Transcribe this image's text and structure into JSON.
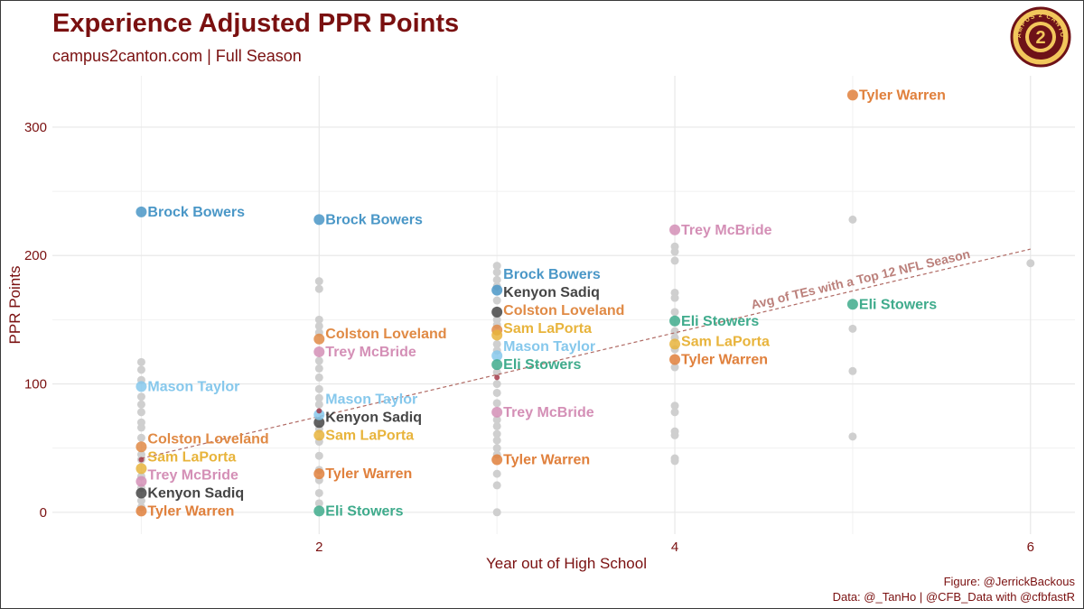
{
  "header": {
    "title": "Experience Adjusted PPR Points",
    "subtitle": "campus2canton.com | Full Season"
  },
  "caption": {
    "line1": "Figure: @JerrickBackous",
    "line2": "Data: @_TanHo | @CFB_Data with @cfbfastR"
  },
  "logo": {
    "text": "CAMPUS 2 CANTON",
    "mark": "2"
  },
  "colors": {
    "title": "#7a1010",
    "grid": "#e8e8e8",
    "background_points": "#cfcfcf",
    "trend": "#b06a64",
    "players": {
      "Brock Bowers": "#4a97c7",
      "Kenyon Sadiq": "#454545",
      "Colston Loveland": "#e08a45",
      "Sam LaPorta": "#e8b43c",
      "Mason Taylor": "#86c8ec",
      "Eli Stowers": "#3fab8c",
      "Trey McBride": "#d48fb6",
      "Tyler Warren": "#e0803c"
    }
  },
  "chart_data": {
    "type": "scatter",
    "title": "Experience Adjusted PPR Points",
    "subtitle": "campus2canton.com | Full Season",
    "xlabel": "Year out of High School",
    "ylabel": "PPR Points",
    "xlim": [
      0.5,
      6.25
    ],
    "ylim": [
      -17,
      340
    ],
    "xticks": [
      2,
      4,
      6
    ],
    "yticks": [
      0,
      100,
      200,
      300
    ],
    "grid": true,
    "highlighted_series": [
      {
        "name": "Brock Bowers",
        "points": [
          {
            "x": 1,
            "y": 234
          },
          {
            "x": 2,
            "y": 228
          },
          {
            "x": 3,
            "y": 173
          }
        ]
      },
      {
        "name": "Kenyon Sadiq",
        "points": [
          {
            "x": 1,
            "y": 15
          },
          {
            "x": 2,
            "y": 70
          },
          {
            "x": 3,
            "y": 156
          }
        ]
      },
      {
        "name": "Colston Loveland",
        "points": [
          {
            "x": 1,
            "y": 51
          },
          {
            "x": 2,
            "y": 135
          },
          {
            "x": 3,
            "y": 142
          }
        ]
      },
      {
        "name": "Sam LaPorta",
        "points": [
          {
            "x": 1,
            "y": 34
          },
          {
            "x": 2,
            "y": 60
          },
          {
            "x": 3,
            "y": 138
          },
          {
            "x": 4,
            "y": 131
          }
        ]
      },
      {
        "name": "Mason Taylor",
        "points": [
          {
            "x": 1,
            "y": 98
          },
          {
            "x": 2,
            "y": 76
          },
          {
            "x": 3,
            "y": 122
          }
        ]
      },
      {
        "name": "Eli Stowers",
        "points": [
          {
            "x": 2,
            "y": 1
          },
          {
            "x": 3,
            "y": 115
          },
          {
            "x": 4,
            "y": 149
          },
          {
            "x": 5,
            "y": 162
          }
        ]
      },
      {
        "name": "Trey McBride",
        "points": [
          {
            "x": 1,
            "y": 24
          },
          {
            "x": 2,
            "y": 125
          },
          {
            "x": 3,
            "y": 78
          },
          {
            "x": 4,
            "y": 220
          }
        ]
      },
      {
        "name": "Tyler Warren",
        "points": [
          {
            "x": 1,
            "y": 1
          },
          {
            "x": 2,
            "y": 30
          },
          {
            "x": 3,
            "y": 41
          },
          {
            "x": 4,
            "y": 119
          },
          {
            "x": 5,
            "y": 325
          }
        ]
      }
    ],
    "background_points": [
      {
        "x": 1,
        "y": 117
      },
      {
        "x": 1,
        "y": 111
      },
      {
        "x": 1,
        "y": 103
      },
      {
        "x": 1,
        "y": 90
      },
      {
        "x": 1,
        "y": 84
      },
      {
        "x": 1,
        "y": 78
      },
      {
        "x": 1,
        "y": 70
      },
      {
        "x": 1,
        "y": 66
      },
      {
        "x": 1,
        "y": 58
      },
      {
        "x": 1,
        "y": 45
      },
      {
        "x": 1,
        "y": 41
      },
      {
        "x": 1,
        "y": 28
      },
      {
        "x": 1,
        "y": 19
      },
      {
        "x": 1,
        "y": 9
      },
      {
        "x": 1,
        "y": 4
      },
      {
        "x": 2,
        "y": 180
      },
      {
        "x": 2,
        "y": 174
      },
      {
        "x": 2,
        "y": 150
      },
      {
        "x": 2,
        "y": 145
      },
      {
        "x": 2,
        "y": 140
      },
      {
        "x": 2,
        "y": 118
      },
      {
        "x": 2,
        "y": 112
      },
      {
        "x": 2,
        "y": 105
      },
      {
        "x": 2,
        "y": 96
      },
      {
        "x": 2,
        "y": 89
      },
      {
        "x": 2,
        "y": 84
      },
      {
        "x": 2,
        "y": 65
      },
      {
        "x": 2,
        "y": 55
      },
      {
        "x": 2,
        "y": 44
      },
      {
        "x": 2,
        "y": 33
      },
      {
        "x": 2,
        "y": 25
      },
      {
        "x": 2,
        "y": 15
      },
      {
        "x": 2,
        "y": 7
      },
      {
        "x": 3,
        "y": 192
      },
      {
        "x": 3,
        "y": 187
      },
      {
        "x": 3,
        "y": 181
      },
      {
        "x": 3,
        "y": 176
      },
      {
        "x": 3,
        "y": 165
      },
      {
        "x": 3,
        "y": 150
      },
      {
        "x": 3,
        "y": 146
      },
      {
        "x": 3,
        "y": 131
      },
      {
        "x": 3,
        "y": 126
      },
      {
        "x": 3,
        "y": 109
      },
      {
        "x": 3,
        "y": 100
      },
      {
        "x": 3,
        "y": 93
      },
      {
        "x": 3,
        "y": 85
      },
      {
        "x": 3,
        "y": 72
      },
      {
        "x": 3,
        "y": 67
      },
      {
        "x": 3,
        "y": 61
      },
      {
        "x": 3,
        "y": 56
      },
      {
        "x": 3,
        "y": 50
      },
      {
        "x": 3,
        "y": 45
      },
      {
        "x": 3,
        "y": 30
      },
      {
        "x": 3,
        "y": 21
      },
      {
        "x": 3,
        "y": 0
      },
      {
        "x": 4,
        "y": 207
      },
      {
        "x": 4,
        "y": 203
      },
      {
        "x": 4,
        "y": 196
      },
      {
        "x": 4,
        "y": 171
      },
      {
        "x": 4,
        "y": 167
      },
      {
        "x": 4,
        "y": 156
      },
      {
        "x": 4,
        "y": 141
      },
      {
        "x": 4,
        "y": 136
      },
      {
        "x": 4,
        "y": 127
      },
      {
        "x": 4,
        "y": 113
      },
      {
        "x": 4,
        "y": 83
      },
      {
        "x": 4,
        "y": 78
      },
      {
        "x": 4,
        "y": 63
      },
      {
        "x": 4,
        "y": 60
      },
      {
        "x": 4,
        "y": 42
      },
      {
        "x": 4,
        "y": 40
      },
      {
        "x": 5,
        "y": 228
      },
      {
        "x": 5,
        "y": 143
      },
      {
        "x": 5,
        "y": 110
      },
      {
        "x": 5,
        "y": 59
      },
      {
        "x": 6,
        "y": 194
      }
    ],
    "trend_line": {
      "label": "Avg of TEs with a Top 12 NFL Season",
      "style": "dashed",
      "from": {
        "x": 1,
        "y": 42
      },
      "to": {
        "x": 6,
        "y": 205
      }
    },
    "dark_marks": [
      {
        "x": 1,
        "y": 41
      },
      {
        "x": 2,
        "y": 79
      },
      {
        "x": 3,
        "y": 105
      }
    ]
  }
}
